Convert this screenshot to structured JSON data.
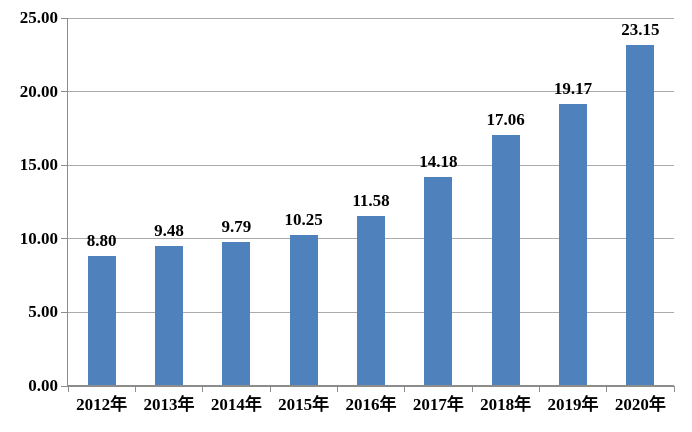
{
  "chart_data": {
    "type": "bar",
    "title": "",
    "categories": [
      "2012年",
      "2013年",
      "2014年",
      "2015年",
      "2016年",
      "2017年",
      "2018年",
      "2019年",
      "2020年"
    ],
    "values": [
      8.8,
      9.48,
      9.79,
      10.25,
      11.58,
      14.18,
      17.06,
      19.17,
      23.15
    ],
    "data_labels": [
      "8.80",
      "9.48",
      "9.79",
      "10.25",
      "11.58",
      "14.18",
      "17.06",
      "19.17",
      "23.15"
    ],
    "xlabel": "",
    "ylabel": "",
    "ylim": [
      0,
      25
    ],
    "ytick_step": 5,
    "ytick_labels": [
      "0.00",
      "5.00",
      "10.00",
      "15.00",
      "20.00",
      "25.00"
    ],
    "grid": true,
    "legend_position": "none",
    "colors": {
      "bar_fill": "#4F81BD",
      "gridline": "#ABABAB",
      "axis": "#8C8C8C",
      "text": "#000000",
      "background": "#FFFFFF"
    }
  }
}
